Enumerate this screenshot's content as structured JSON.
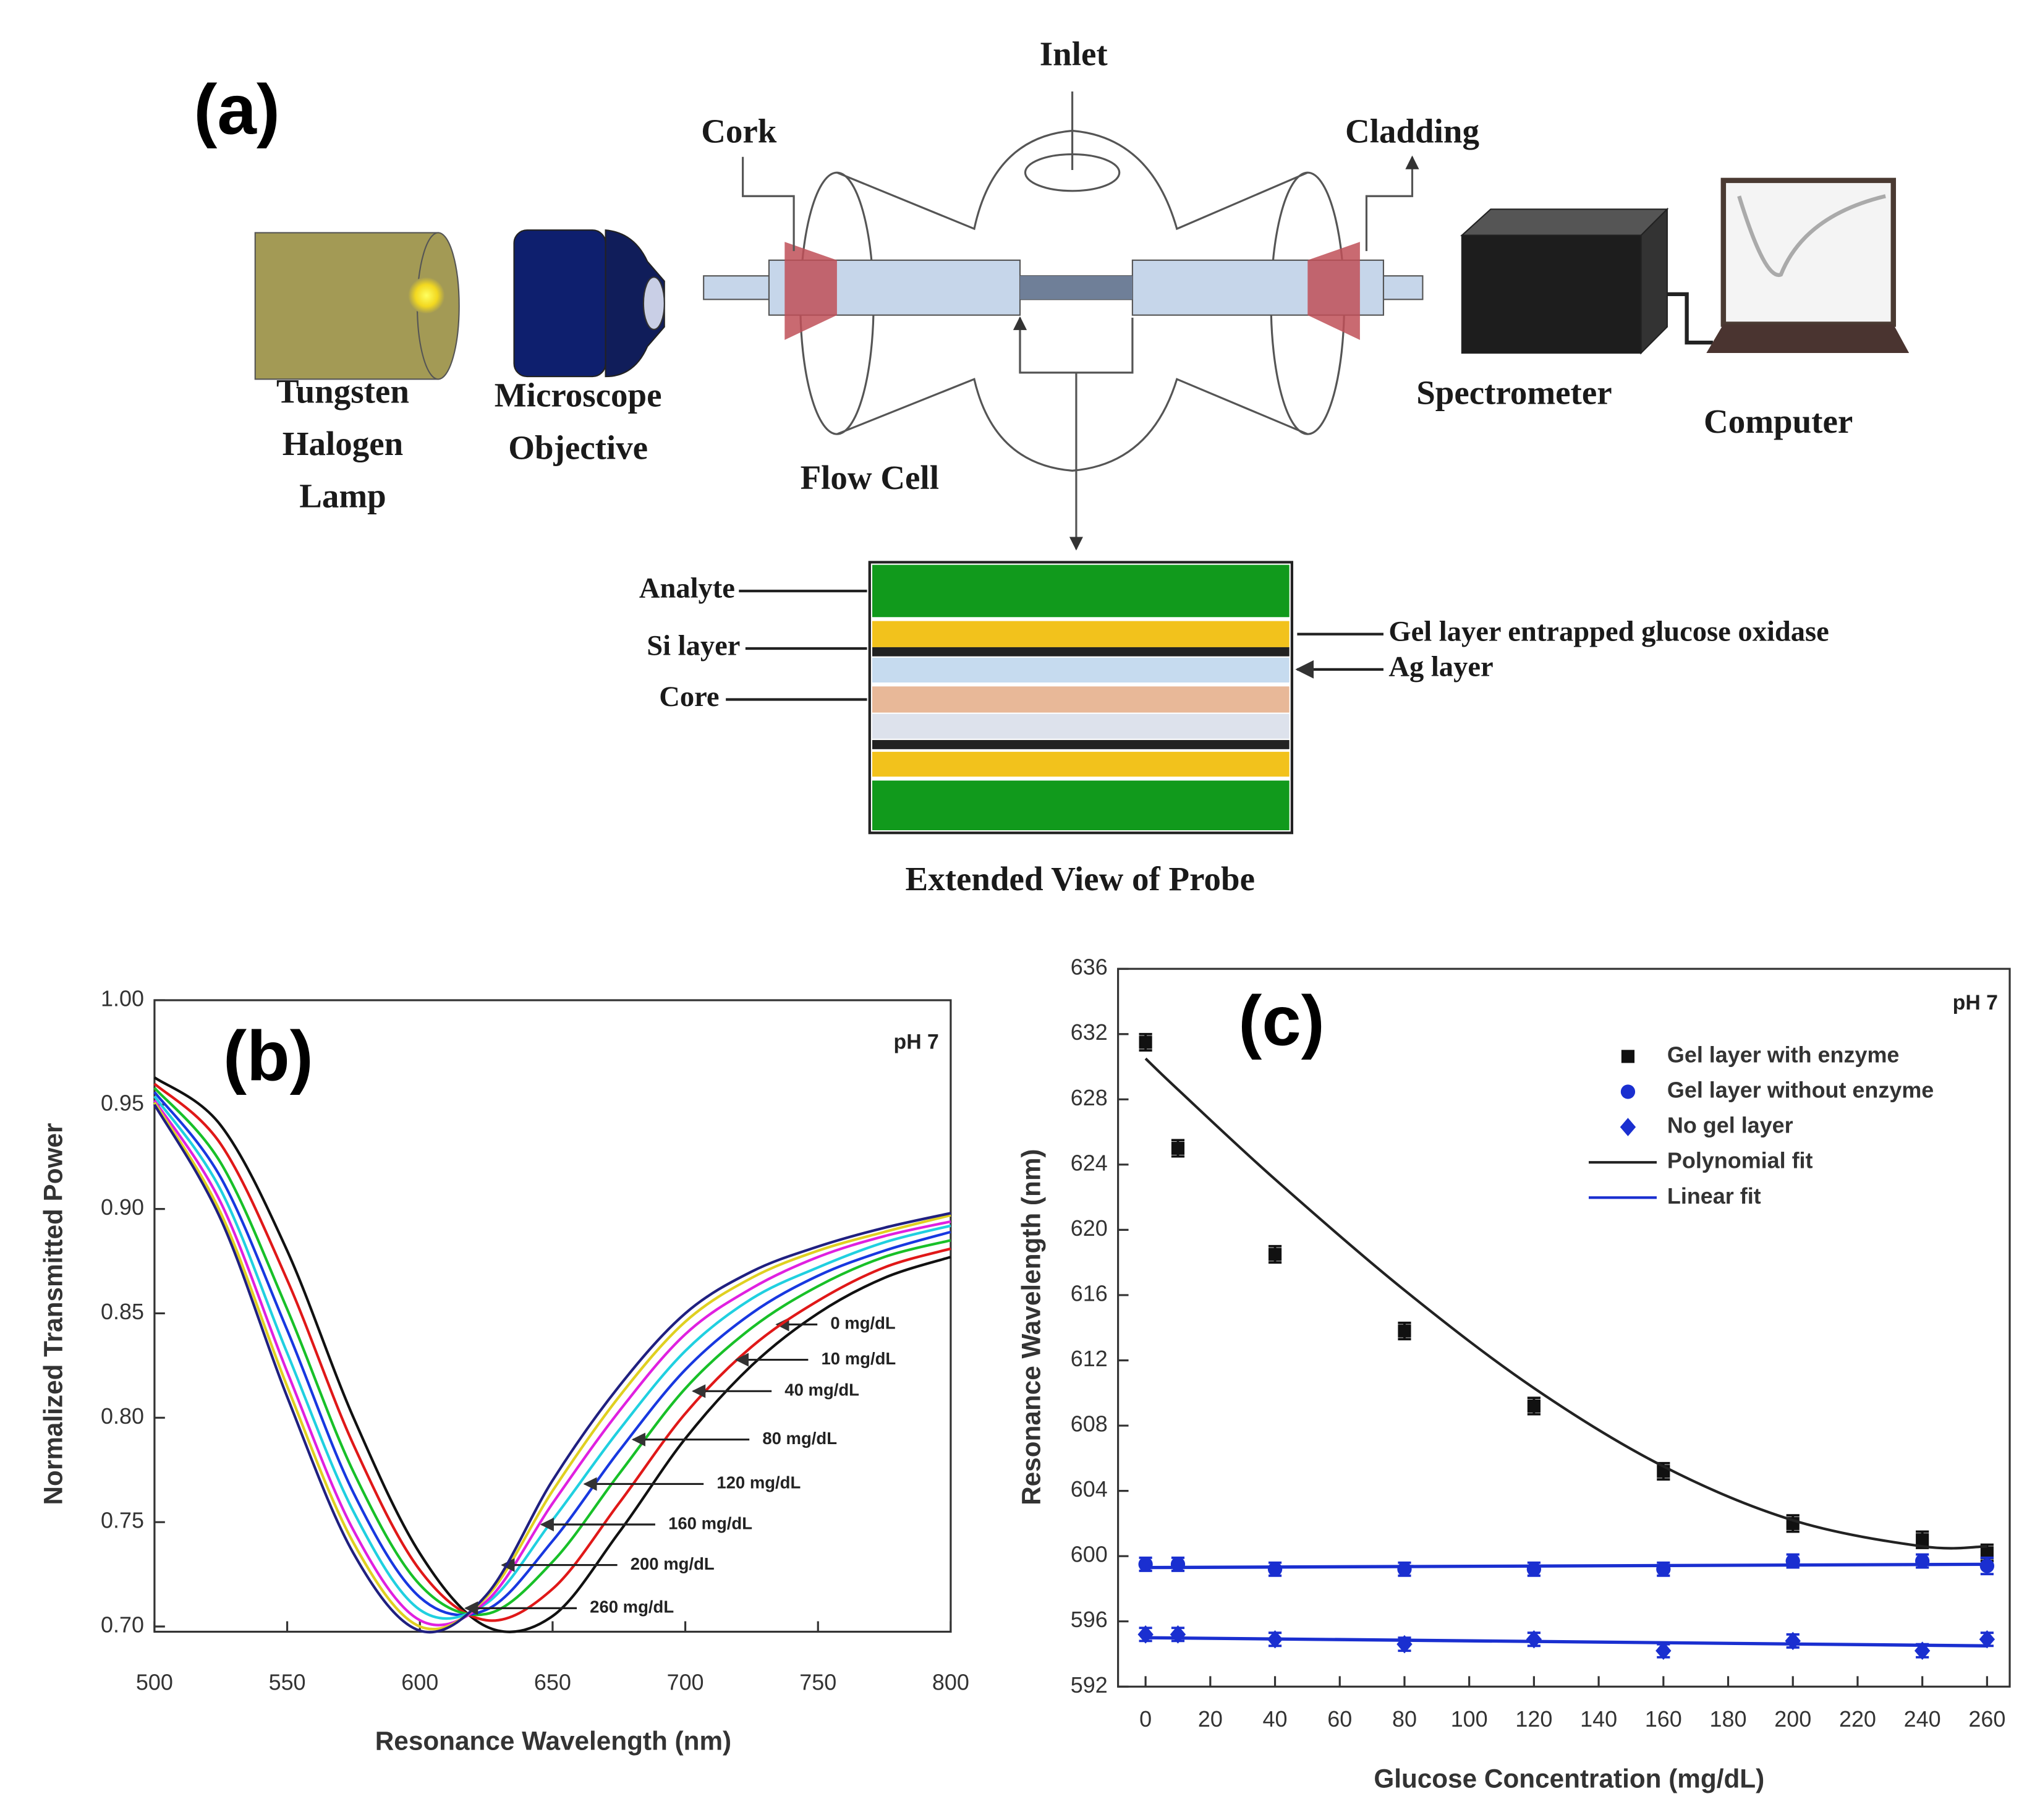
{
  "diagram": {
    "panel_label": "(a)",
    "inlet": "Inlet",
    "cork": "Cork",
    "cladding": "Cladding",
    "lamp": [
      "Tungsten",
      "Halogen",
      "Lamp"
    ],
    "objective": [
      "Microscope",
      "Objective"
    ],
    "flow_cell": "Flow Cell",
    "spectrometer": "Spectrometer",
    "computer": "Computer",
    "probe": {
      "analyte": "Analyte",
      "si_layer": "Si layer",
      "core": "Core",
      "gel_layer": "Gel layer entrapped glucose oxidase",
      "ag_layer": "Ag layer",
      "caption": "Extended View of Probe"
    }
  },
  "chart_data": [
    {
      "type": "line",
      "panel_label": "(b)",
      "annotation": "pH 7",
      "x_label": "Resonance Wavelength (nm)",
      "y_label": "Normalized Transmitted Power",
      "x": [
        500,
        525,
        550,
        575,
        600,
        625,
        650,
        675,
        700,
        725,
        750,
        775,
        800
      ],
      "series": [
        {
          "name": "0 mg/dL",
          "color": "#111111",
          "values": [
            0.963,
            0.94,
            0.88,
            0.8,
            0.735,
            0.7,
            0.705,
            0.745,
            0.79,
            0.825,
            0.85,
            0.867,
            0.877
          ]
        },
        {
          "name": "10 mg/dL",
          "color": "#e01818",
          "values": [
            0.96,
            0.931,
            0.866,
            0.787,
            0.727,
            0.703,
            0.718,
            0.759,
            0.802,
            0.834,
            0.856,
            0.872,
            0.881
          ]
        },
        {
          "name": "40 mg/dL",
          "color": "#18c028",
          "values": [
            0.958,
            0.922,
            0.852,
            0.774,
            0.72,
            0.706,
            0.731,
            0.773,
            0.814,
            0.843,
            0.863,
            0.877,
            0.885
          ]
        },
        {
          "name": "80 mg/dL",
          "color": "#1838e0",
          "values": [
            0.956,
            0.915,
            0.842,
            0.764,
            0.714,
            0.708,
            0.741,
            0.784,
            0.823,
            0.85,
            0.868,
            0.88,
            0.889
          ]
        },
        {
          "name": "120 mg/dL",
          "color": "#20d0e0",
          "values": [
            0.954,
            0.909,
            0.831,
            0.755,
            0.708,
            0.711,
            0.751,
            0.794,
            0.832,
            0.857,
            0.872,
            0.884,
            0.892
          ]
        },
        {
          "name": "160 mg/dL",
          "color": "#e020e0",
          "values": [
            0.952,
            0.903,
            0.822,
            0.746,
            0.703,
            0.712,
            0.759,
            0.803,
            0.84,
            0.862,
            0.877,
            0.887,
            0.894
          ]
        },
        {
          "name": "200 mg/dL",
          "color": "#e0d020",
          "values": [
            0.951,
            0.898,
            0.815,
            0.74,
            0.7,
            0.714,
            0.765,
            0.81,
            0.846,
            0.867,
            0.88,
            0.889,
            0.897
          ]
        },
        {
          "name": "260 mg/dL",
          "color": "#202080",
          "values": [
            0.95,
            0.895,
            0.81,
            0.735,
            0.698,
            0.715,
            0.77,
            0.815,
            0.85,
            0.87,
            0.882,
            0.891,
            0.898
          ]
        }
      ],
      "xlim": [
        500,
        800
      ],
      "ylim": [
        0.6975,
        1.0
      ],
      "xticks": [
        500,
        550,
        600,
        650,
        700,
        750,
        800
      ],
      "yticks": [
        {
          "value": 0.7,
          "label": "0.70"
        },
        0.75,
        {
          "value": 0.8,
          "label": "0.80"
        },
        0.85,
        {
          "value": 0.9,
          "label": "0.90"
        },
        0.95,
        {
          "value": 1.0,
          "label": "1.00"
        }
      ]
    },
    {
      "type": "scatter",
      "panel_label": "(c)",
      "annotation": "pH 7",
      "x_label": "Glucose Concentration (mg/dL)",
      "y_label": "Resonance Wavelength (nm)",
      "x": [
        0,
        10,
        40,
        80,
        120,
        160,
        200,
        240,
        260
      ],
      "series": [
        {
          "name": "Gel layer with enzyme",
          "color": "#111111",
          "marker": "square",
          "values": [
            631.5,
            625,
            618.5,
            613.8,
            609.2,
            605.2,
            602,
            601,
            600.2
          ],
          "errors": [
            0.5,
            0.5,
            0.5,
            0.5,
            0.5,
            0.5,
            0.5,
            0.5,
            0.5
          ]
        },
        {
          "name": "Gel layer without enzyme",
          "color": "#1a2fd0",
          "marker": "circle",
          "values": [
            599.5,
            599.5,
            599.2,
            599.2,
            599.2,
            599.2,
            599.7,
            599.7,
            599.4
          ],
          "errors": [
            0.4,
            0.4,
            0.4,
            0.4,
            0.4,
            0.4,
            0.4,
            0.4,
            0.5
          ]
        },
        {
          "name": "No gel layer",
          "color": "#1a2fd0",
          "marker": "diamond",
          "values": [
            595.2,
            595.2,
            594.9,
            594.6,
            594.9,
            594.2,
            594.8,
            594.2,
            594.9
          ],
          "errors": [
            0.4,
            0.4,
            0.4,
            0.4,
            0.4,
            0.4,
            0.4,
            0.4,
            0.4
          ]
        },
        {
          "name": "Polynomial fit",
          "color": "#222222",
          "values": [
            630.5,
            628.6,
            623.1,
            616.3,
            610.3,
            605.5,
            602.2,
            600.6,
            600.6
          ]
        },
        {
          "name": "Linear fit",
          "color": "#1a2fd0",
          "lines": [
            {
              "x": [
                0,
                260
              ],
              "values": [
                599.3,
                599.5
              ]
            },
            {
              "x": [
                0,
                260
              ],
              "values": [
                595.0,
                594.5
              ]
            }
          ]
        }
      ],
      "xlim": [
        -8.5,
        267
      ],
      "ylim": [
        592,
        636
      ],
      "xticks": [
        0,
        20,
        40,
        60,
        80,
        100,
        120,
        140,
        160,
        180,
        200,
        220,
        240,
        260
      ],
      "yticks": [
        592,
        596,
        600,
        604,
        608,
        612,
        616,
        620,
        624,
        628,
        632,
        636
      ]
    }
  ]
}
